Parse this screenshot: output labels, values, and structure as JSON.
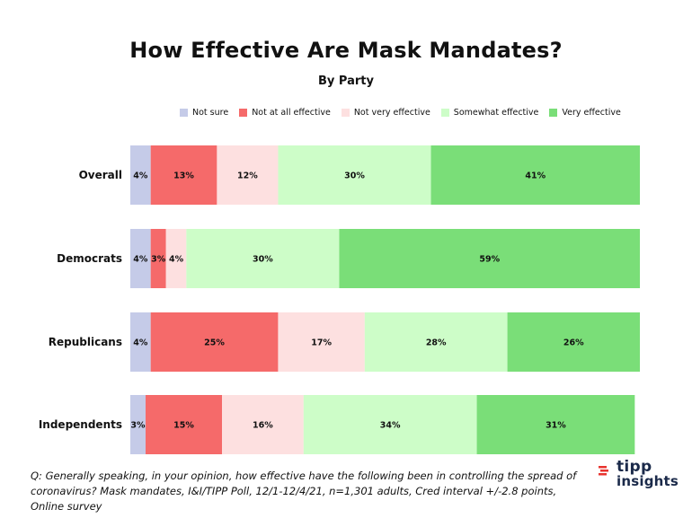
{
  "chart_data": {
    "type": "bar",
    "orientation": "horizontal",
    "stacked": true,
    "title": "How Effective Are Mask Mandates?",
    "subtitle": "By Party",
    "categories": [
      "Overall",
      "Democrats",
      "Republicans",
      "Independents"
    ],
    "series": [
      {
        "name": "Not sure",
        "color": "#c5cbe8",
        "values": [
          4,
          4,
          4,
          3
        ],
        "labels": [
          "4%",
          "4%",
          "4%",
          "3%"
        ]
      },
      {
        "name": "Not at all effective",
        "color": "#f56a6a",
        "values": [
          13,
          3,
          25,
          15
        ],
        "labels": [
          "13%",
          "3%",
          "25%",
          "15%"
        ]
      },
      {
        "name": "Not very effective",
        "color": "#fde0e0",
        "values": [
          12,
          4,
          17,
          16
        ],
        "labels": [
          "12%",
          "4%",
          "17%",
          "16%"
        ]
      },
      {
        "name": "Somewhat effective",
        "color": "#cdfdc8",
        "values": [
          30,
          30,
          28,
          34
        ],
        "labels": [
          "30%",
          "30%",
          "28%",
          "34%"
        ]
      },
      {
        "name": "Very effective",
        "color": "#7ade78",
        "values": [
          41,
          59,
          26,
          31
        ],
        "labels": [
          "41%",
          "59%",
          "26%",
          "31%"
        ]
      }
    ],
    "legend_position": "top",
    "grid": false
  },
  "footnote": "Q:  Generally speaking, in your opinion, how effective have the following been in controlling the spread of coronavirus? Mask mandates, I&I/TIPP Poll, 12/1-12/4/21, n=1,301 adults, Cred interval +/-2.8 points, Online survey",
  "logo": {
    "line1": "tipp",
    "line2": "insights",
    "accent_color": "#e8332f"
  }
}
